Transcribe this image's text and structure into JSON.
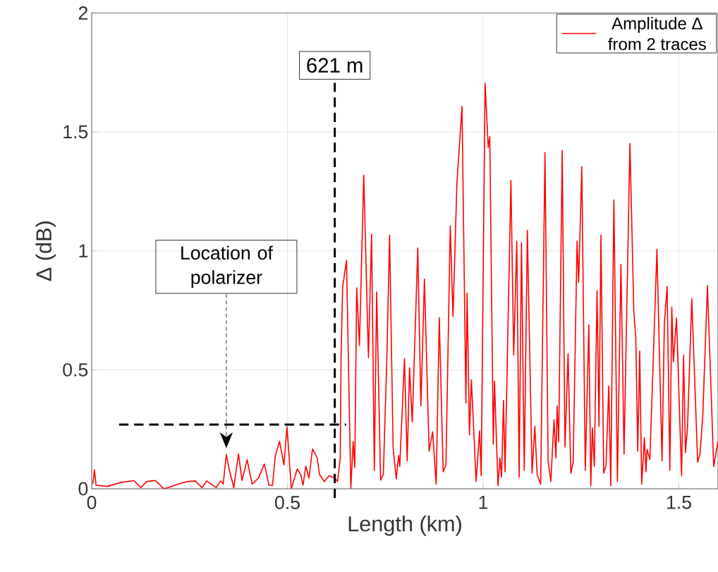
{
  "chart_data": {
    "type": "line",
    "xlabel": "Length (km)",
    "ylabel": "Δ (dB)",
    "xlim": [
      0,
      1.6
    ],
    "ylim": [
      0,
      2
    ],
    "xticks": [
      0,
      0.5,
      1,
      1.5
    ],
    "yticks": [
      0,
      0.5,
      1,
      1.5,
      2
    ],
    "grid": true,
    "legend": "top right",
    "ref_lines": [
      {
        "axis": "x",
        "value": 0.621,
        "label": "621 m",
        "color": "#000000",
        "line_style": "dashed"
      }
    ],
    "annotations": [
      "Location of polarizer"
    ],
    "series": [
      {
        "name": "Amplitude Δ from 2 traces",
        "color": "#ff0000",
        "line_style": "solid",
        "x": [
          0.003,
          0.007,
          0.011,
          0.04,
          0.075,
          0.108,
          0.126,
          0.14,
          0.162,
          0.185,
          0.222,
          0.243,
          0.264,
          0.282,
          0.294,
          0.318,
          0.33,
          0.336,
          0.344,
          0.351,
          0.363,
          0.375,
          0.384,
          0.397,
          0.41,
          0.426,
          0.441,
          0.453,
          0.462,
          0.469,
          0.48,
          0.491,
          0.499,
          0.51,
          0.525,
          0.534,
          0.54,
          0.547,
          0.555,
          0.564,
          0.576,
          0.582,
          0.594,
          0.606,
          0.621,
          0.628,
          0.635,
          0.637,
          0.641,
          0.651,
          0.662,
          0.668,
          0.672,
          0.677,
          0.684,
          0.695,
          0.707,
          0.715,
          0.722,
          0.728,
          0.738,
          0.745,
          0.754,
          0.761,
          0.77,
          0.778,
          0.784,
          0.787,
          0.799,
          0.806,
          0.812,
          0.819,
          0.833,
          0.841,
          0.85,
          0.862,
          0.871,
          0.88,
          0.888,
          0.898,
          0.905,
          0.916,
          0.923,
          0.933,
          0.946,
          0.956,
          0.959,
          0.965,
          0.97,
          0.982,
          0.991,
          0.995,
          1.005,
          1.013,
          1.017,
          1.026,
          1.029,
          1.038,
          1.043,
          1.047,
          1.052,
          1.056,
          1.071,
          1.078,
          1.086,
          1.092,
          1.098,
          1.105,
          1.113,
          1.125,
          1.132,
          1.138,
          1.147,
          1.158,
          1.166,
          1.173,
          1.181,
          1.186,
          1.189,
          1.193,
          1.202,
          1.209,
          1.217,
          1.224,
          1.23,
          1.24,
          1.244,
          1.252,
          1.261,
          1.27,
          1.275,
          1.279,
          1.284,
          1.291,
          1.296,
          1.301,
          1.308,
          1.314,
          1.321,
          1.326,
          1.334,
          1.343,
          1.352,
          1.36,
          1.375,
          1.385,
          1.39,
          1.395,
          1.4,
          1.405,
          1.412,
          1.416,
          1.419,
          1.426,
          1.444,
          1.457,
          1.463,
          1.47,
          1.477,
          1.482,
          1.486,
          1.494,
          1.507,
          1.512,
          1.517,
          1.522,
          1.533,
          1.548,
          1.554,
          1.561,
          1.573,
          1.589,
          1.6
        ],
        "values": [
          0.02,
          0.08,
          0.015,
          0.01,
          0.027,
          0.034,
          0.005,
          0.03,
          0.035,
          0.0,
          0.02,
          0.03,
          0.033,
          0.005,
          0.033,
          0.005,
          0.033,
          0.02,
          0.144,
          0.083,
          0.005,
          0.147,
          0.035,
          0.122,
          0.02,
          0.045,
          0.104,
          0.015,
          0.015,
          0.137,
          0.2,
          0.1,
          0.26,
          0.0,
          0.083,
          0.06,
          0.015,
          0.095,
          0.045,
          0.167,
          0.13,
          0.06,
          0.03,
          0.055,
          0.045,
          0.03,
          0.13,
          0.545,
          0.845,
          0.96,
          0.002,
          0.198,
          0.09,
          0.845,
          0.602,
          1.318,
          0.55,
          1.07,
          0.077,
          0.827,
          0.036,
          0.06,
          0.545,
          1.066,
          0.175,
          0.042,
          0.14,
          0.094,
          0.547,
          0.117,
          0.508,
          0.281,
          1.012,
          0.348,
          0.882,
          0.158,
          0.239,
          0.019,
          0.718,
          0.071,
          0.1,
          1.105,
          0.724,
          1.284,
          1.607,
          0.36,
          0.822,
          0.227,
          0.458,
          0.031,
          0.244,
          0.054,
          1.705,
          1.434,
          1.48,
          0.187,
          0.452,
          0.013,
          0.129,
          0.048,
          0.371,
          0.071,
          1.297,
          0.562,
          1.041,
          0.048,
          1.035,
          0.077,
          1.087,
          0.065,
          0.262,
          0.06,
          0.019,
          1.413,
          0.117,
          0.031,
          0.29,
          0.129,
          0.348,
          0.198,
          1.422,
          0.175,
          0.568,
          0.065,
          0.112,
          1.041,
          0.868,
          1.353,
          0.077,
          0.689,
          0.013,
          0.256,
          0.094,
          0.833,
          0.262,
          1.066,
          0.065,
          0.1,
          0.431,
          0.013,
          1.214,
          0.031,
          0.943,
          0.146,
          1.451,
          0.741,
          0.637,
          0.158,
          0.579,
          0.019,
          0.215,
          0.071,
          0.166,
          0.123,
          1.006,
          0.117,
          0.695,
          0.85,
          0.077,
          0.764,
          0.533,
          0.718,
          0.054,
          0.562,
          0.152,
          0.256,
          0.799,
          0.112,
          0.146,
          0.302,
          0.854,
          0.094,
          0.2
        ]
      },
      {
        "type": "line",
        "color": "#000000",
        "line_style": "dashed",
        "x": [
          0.07,
          0.65
        ],
        "values": [
          0.27,
          0.27
        ]
      }
    ]
  }
}
